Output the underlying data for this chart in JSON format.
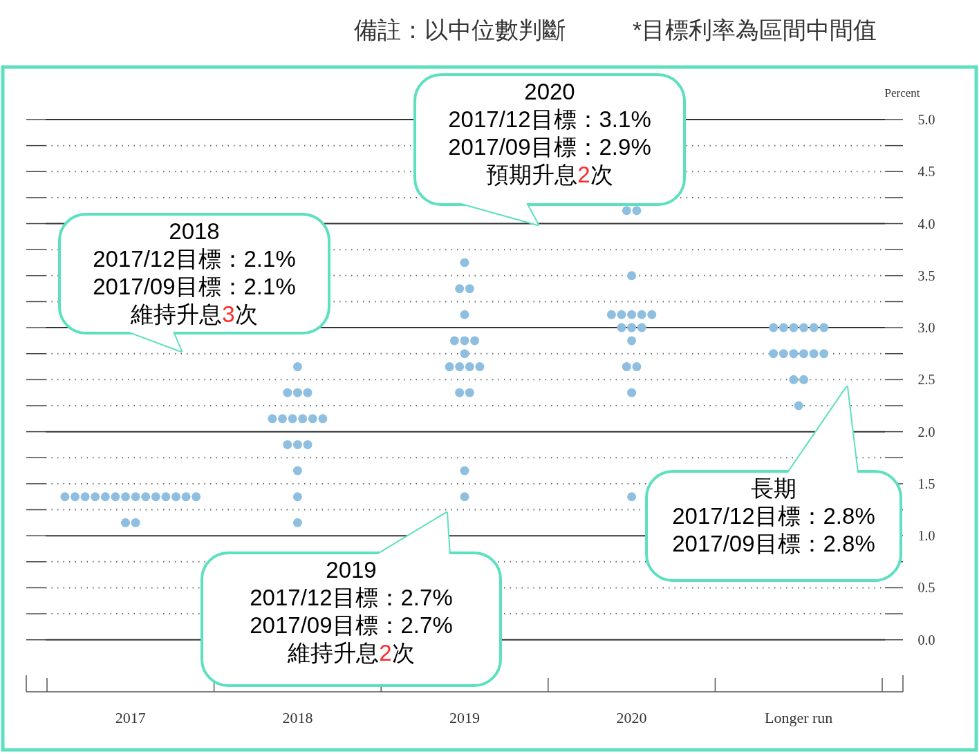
{
  "chart_data": {
    "type": "scatter",
    "title": "備註：以中位數判斷",
    "subtitle": "*目標利率為區間中間值",
    "ylabel": "Percent",
    "categories": [
      "2017",
      "2018",
      "2019",
      "2020",
      "Longer run"
    ],
    "marker": "circle",
    "series": [
      {
        "color": "#8fbfe0",
        "values": [
          1.375,
          2.625,
          3.625,
          4.125,
          3.0
        ]
      },
      {
        "color": "#8fbfe0",
        "values": [
          1.375,
          2.375,
          3.375,
          4.125,
          3.0
        ]
      },
      {
        "color": "#8fbfe0",
        "values": [
          1.375,
          2.375,
          3.375,
          3.5,
          3.0
        ]
      },
      {
        "color": "#8fbfe0",
        "values": [
          1.375,
          2.375,
          3.125,
          3.125,
          3.0
        ]
      },
      {
        "color": "#8fbfe0",
        "values": [
          1.375,
          2.125,
          2.875,
          3.125,
          3.0
        ]
      },
      {
        "color": "#8fbfe0",
        "values": [
          1.375,
          2.125,
          2.875,
          3.125,
          3.0
        ]
      },
      {
        "color": "#8fbfe0",
        "values": [
          1.375,
          2.125,
          2.875,
          3.125,
          2.75
        ]
      },
      {
        "color": "#8fbfe0",
        "values": [
          1.375,
          2.125,
          2.75,
          3.125,
          2.75
        ]
      },
      {
        "color": "#8fbfe0",
        "values": [
          1.375,
          2.125,
          2.625,
          3.0,
          2.75
        ]
      },
      {
        "color": "#8fbfe0",
        "values": [
          1.375,
          2.125,
          2.625,
          3.0,
          2.75
        ]
      },
      {
        "color": "#8fbfe0",
        "values": [
          1.375,
          1.875,
          2.625,
          3.0,
          2.75
        ]
      },
      {
        "color": "#8fbfe0",
        "values": [
          1.375,
          1.875,
          2.625,
          2.875,
          2.75
        ]
      },
      {
        "color": "#8fbfe0",
        "values": [
          1.375,
          1.875,
          2.375,
          2.625,
          2.5
        ]
      },
      {
        "color": "#8fbfe0",
        "values": [
          1.375,
          1.625,
          2.375,
          2.625,
          2.5
        ]
      },
      {
        "color": "#8fbfe0",
        "values": [
          1.125,
          1.375,
          1.625,
          2.375,
          2.25
        ]
      },
      {
        "color": "#8fbfe0",
        "values": [
          1.125,
          1.125,
          1.375,
          1.375,
          null
        ]
      }
    ],
    "ylim": [
      -0.5,
      5.0
    ],
    "yticks": [
      {
        "value": 0,
        "label": "0.0"
      },
      {
        "value": 0.25,
        "label": null
      },
      {
        "value": 0.5,
        "label": "0.5"
      },
      {
        "value": 0.75,
        "label": null
      },
      {
        "value": 1,
        "label": "1.0"
      },
      {
        "value": 1.25,
        "label": null
      },
      {
        "value": 1.5,
        "label": "1.5"
      },
      {
        "value": 1.75,
        "label": null
      },
      {
        "value": 2,
        "label": "2.0"
      },
      {
        "value": 2.25,
        "label": null
      },
      {
        "value": 2.5,
        "label": "2.5"
      },
      {
        "value": 2.75,
        "label": null
      },
      {
        "value": 3,
        "label": "3.0"
      },
      {
        "value": 3.25,
        "label": null
      },
      {
        "value": 3.5,
        "label": "3.5"
      },
      {
        "value": 3.75,
        "label": null
      },
      {
        "value": 4,
        "label": "4.0"
      },
      {
        "value": 4.25,
        "label": null
      },
      {
        "value": 4.5,
        "label": "4.5"
      },
      {
        "value": 4.75,
        "label": null
      },
      {
        "value": 5,
        "label": "5.0"
      }
    ],
    "grid": "y",
    "annotations": [
      "2018\n2017/12目標：2.1%\n2017/09目標：2.1%\n維持升息3次",
      "2020\n2017/12目標：3.1%\n2017/09目標：2.9%\n預期升息2次",
      "2019\n2017/12目標：2.7%\n2017/09目標：2.7%\n維持升息2次",
      "長期\n2017/12目標：2.8%\n2017/09目標：2.8%"
    ]
  }
}
